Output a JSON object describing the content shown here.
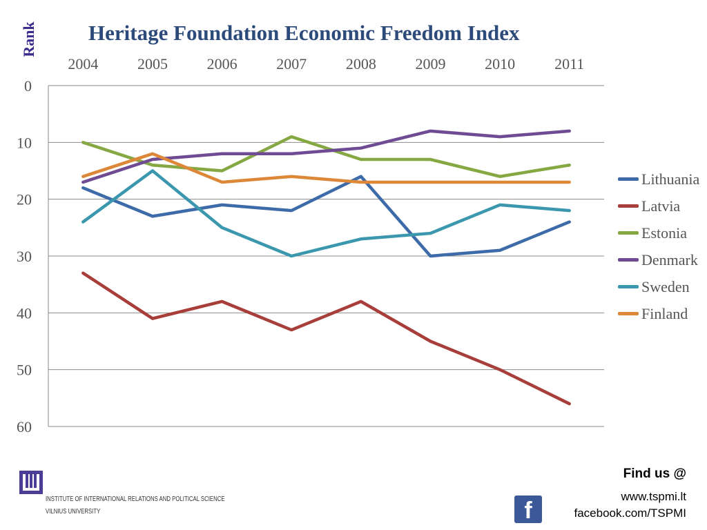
{
  "chart_data": {
    "type": "line",
    "title": "Heritage Foundation Economic Freedom Index",
    "ylabel": "Rank",
    "xlabel": "",
    "categories": [
      "2004",
      "2005",
      "2006",
      "2007",
      "2008",
      "2009",
      "2010",
      "2011"
    ],
    "ylim": [
      0,
      60
    ],
    "y_inverted": true,
    "x_axis_position": "top",
    "y_ticks": [
      0,
      10,
      20,
      30,
      40,
      50,
      60
    ],
    "grid": true,
    "legend_position": "right",
    "series": [
      {
        "name": "Lithuania",
        "color": "#3d6aa8",
        "values": [
          18,
          23,
          21,
          22,
          16,
          30,
          29,
          24
        ]
      },
      {
        "name": "Latvia",
        "color": "#a83e3a",
        "values": [
          33,
          41,
          38,
          43,
          38,
          45,
          50,
          56
        ]
      },
      {
        "name": "Estonia",
        "color": "#86a843",
        "values": [
          10,
          14,
          15,
          9,
          13,
          13,
          16,
          14
        ]
      },
      {
        "name": "Denmark",
        "color": "#6e4b93",
        "values": [
          17,
          13,
          12,
          12,
          11,
          8,
          9,
          8
        ]
      },
      {
        "name": "Sweden",
        "color": "#3a97ad",
        "values": [
          24,
          15,
          25,
          30,
          27,
          26,
          21,
          22
        ]
      },
      {
        "name": "Finland",
        "color": "#dc8838",
        "values": [
          16,
          12,
          17,
          16,
          17,
          17,
          17,
          17
        ]
      }
    ]
  },
  "footer": {
    "find_us": "Find us @",
    "website": "www.tspmi.lt",
    "facebook": "facebook.com/TSPMI",
    "institute_line1": "INSTITUTE OF INTERNATIONAL RELATIONS AND POLITICAL SCIENCE",
    "institute_line2": "VILNIUS UNIVERSITY",
    "logo_icon": "tspmi-logo-icon",
    "facebook_icon": "facebook-icon"
  }
}
